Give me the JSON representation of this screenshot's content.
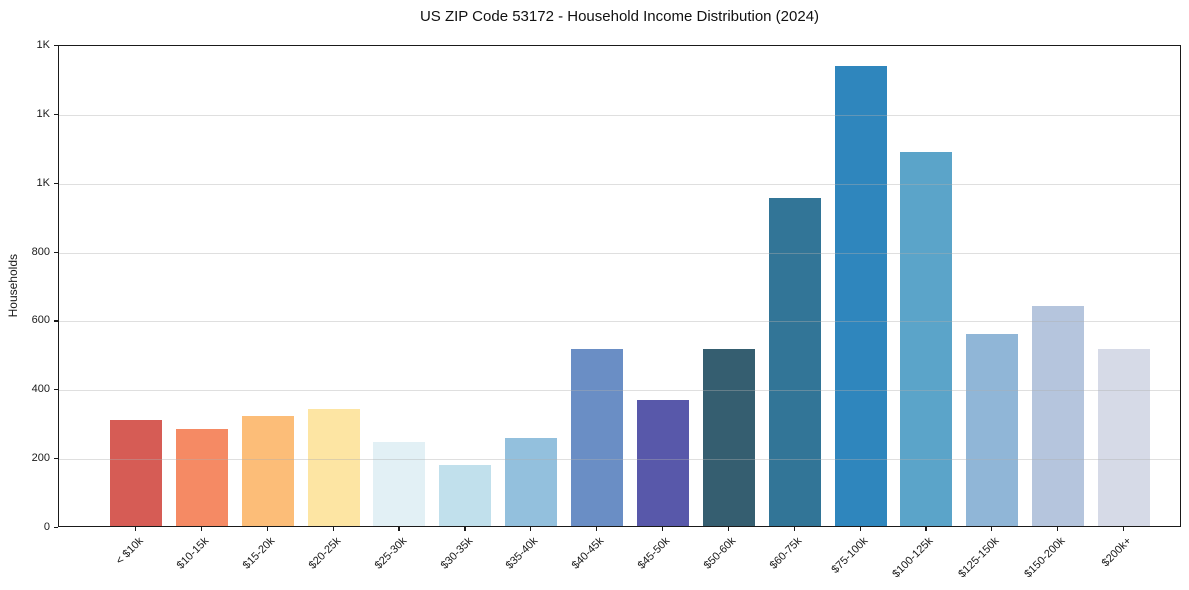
{
  "chart_data": {
    "type": "bar",
    "title": "US ZIP Code 53172 - Household Income Distribution (2024)",
    "xlabel": "",
    "ylabel": "Households",
    "categories": [
      "< $10k",
      "$10-15k",
      "$15-20k",
      "$20-25k",
      "$25-30k",
      "$30-35k",
      "$35-40k",
      "$40-45k",
      "$45-50k",
      "$50-60k",
      "$60-75k",
      "$75-100k",
      "$100-125k",
      "$125-150k",
      "$150-200k",
      "$200k+"
    ],
    "values": [
      307,
      281,
      319,
      340,
      245,
      178,
      257,
      515,
      365,
      515,
      954,
      1335,
      1085,
      558,
      640,
      513
    ],
    "bar_colors": [
      "#d65c55",
      "#f58a64",
      "#fcbd78",
      "#fde5a3",
      "#e2f0f5",
      "#c1e0ec",
      "#93c0dd",
      "#6a8ec5",
      "#5858aa",
      "#355e70",
      "#327597",
      "#2f86bd",
      "#5ba4c9",
      "#90b6d7",
      "#b5c5dd",
      "#d6dae7"
    ],
    "ylim": [
      0,
      1400
    ],
    "yticks": [
      0,
      200,
      400,
      600,
      800,
      1000,
      1200,
      1400
    ],
    "ytick_labels": [
      "0",
      "200",
      "400",
      "600",
      "800",
      "1K",
      "1K",
      "1K"
    ],
    "grid": "horizontal-over-bars",
    "legend": "none",
    "background_color": "#ffffff",
    "spine_color": "#1a1a1a"
  }
}
